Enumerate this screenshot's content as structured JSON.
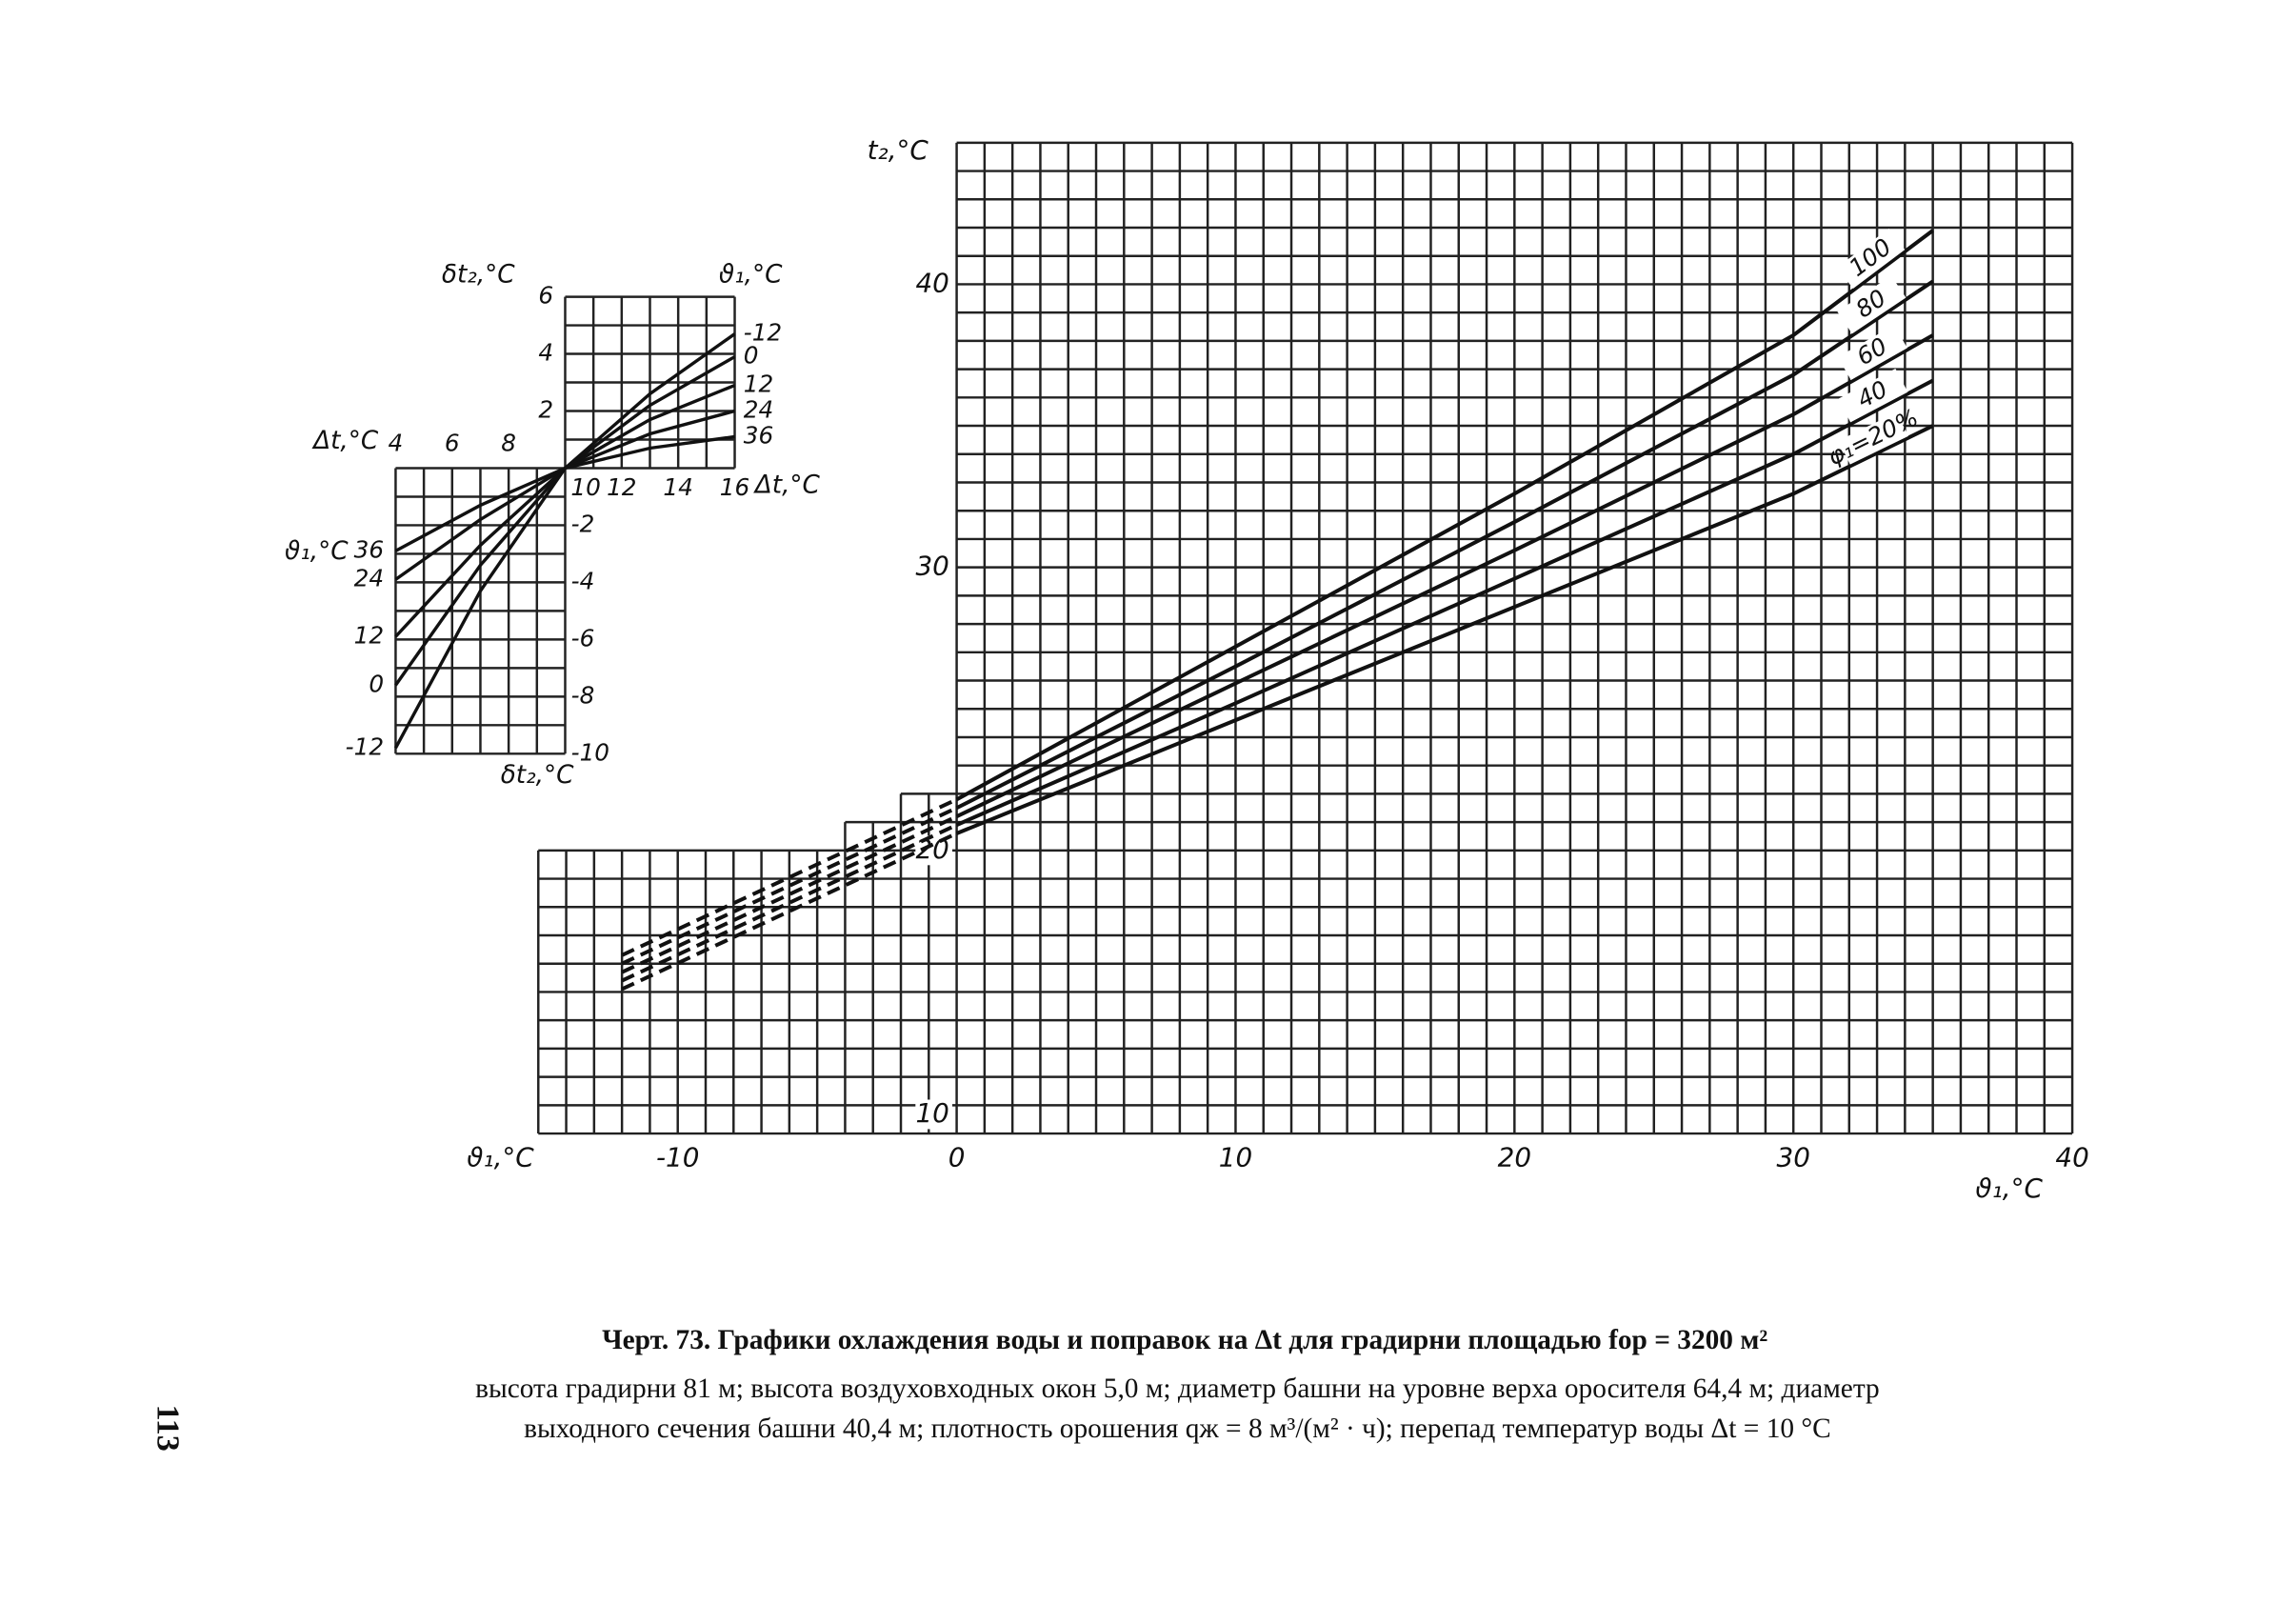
{
  "chart_data": [
    {
      "type": "line",
      "x_label": "Δt,°C",
      "y_label": "δt₂,°C",
      "series_label": "ϑ₁,°C",
      "x": [
        4,
        7,
        10,
        13,
        16
      ],
      "xlim": [
        4,
        16
      ],
      "ylim": [
        -10,
        6
      ],
      "xticks": [
        4,
        6,
        8,
        10,
        12,
        14,
        16
      ],
      "yticks": [
        -10,
        -8,
        -6,
        -4,
        -2,
        2,
        4,
        6
      ],
      "grid": true,
      "series": [
        {
          "name": "-12",
          "color": "#111111",
          "values": [
            -9.8,
            -4.3,
            0,
            2.6,
            4.7
          ]
        },
        {
          "name": "0",
          "color": "#111111",
          "values": [
            -7.6,
            -3.4,
            0,
            2.2,
            3.9
          ]
        },
        {
          "name": "12",
          "color": "#111111",
          "values": [
            -5.9,
            -2.7,
            0,
            1.7,
            2.9
          ]
        },
        {
          "name": "24",
          "color": "#111111",
          "values": [
            -3.9,
            -1.8,
            0,
            1.2,
            2.0
          ]
        },
        {
          "name": "36",
          "color": "#111111",
          "values": [
            -2.9,
            -1.3,
            0,
            0.7,
            1.1
          ]
        }
      ]
    },
    {
      "type": "line",
      "x_label": "ϑ₁,°C",
      "y_label": "t₂,°C",
      "x": [
        -12,
        0,
        10,
        20,
        30,
        35
      ],
      "xlim": [
        -15,
        40
      ],
      "ylim": [
        10,
        45
      ],
      "xticks": [
        -10,
        0,
        10,
        20,
        30,
        40
      ],
      "yticks": [
        10,
        20,
        30,
        40
      ],
      "grid": true,
      "series": [
        {
          "name": "100",
          "color": "#111111",
          "values": [
            16.3,
            21.8,
            27.2,
            32.6,
            38.2,
            41.9
          ]
        },
        {
          "name": "80",
          "color": "#111111",
          "values": [
            16.0,
            21.5,
            26.5,
            31.6,
            36.8,
            40.1
          ]
        },
        {
          "name": "60",
          "color": "#111111",
          "values": [
            15.7,
            21.2,
            25.9,
            30.6,
            35.4,
            38.2
          ]
        },
        {
          "name": "40",
          "color": "#111111",
          "values": [
            15.4,
            20.9,
            25.2,
            29.6,
            34.0,
            36.6
          ]
        },
        {
          "name": "φ₁=20%",
          "color": "#111111",
          "values": [
            15.1,
            20.6,
            24.6,
            28.6,
            32.6,
            35.0
          ]
        }
      ]
    }
  ],
  "caption": {
    "title": "Черт. 73. Графики охлаждения воды и поправок на Δt для градирни площадью fор = 3200 м²",
    "lines": [
      "высота градирни 81 м; высота воздуховходных окон 5,0 м; диаметр башни на уровне верха оросителя 64,4 м; диаметр",
      "выходного сечения башни 40,4 м; плотность орошения qж = 8 м³/(м² · ч); перепад температур воды Δt = 10 °C"
    ]
  },
  "page_number": "113"
}
